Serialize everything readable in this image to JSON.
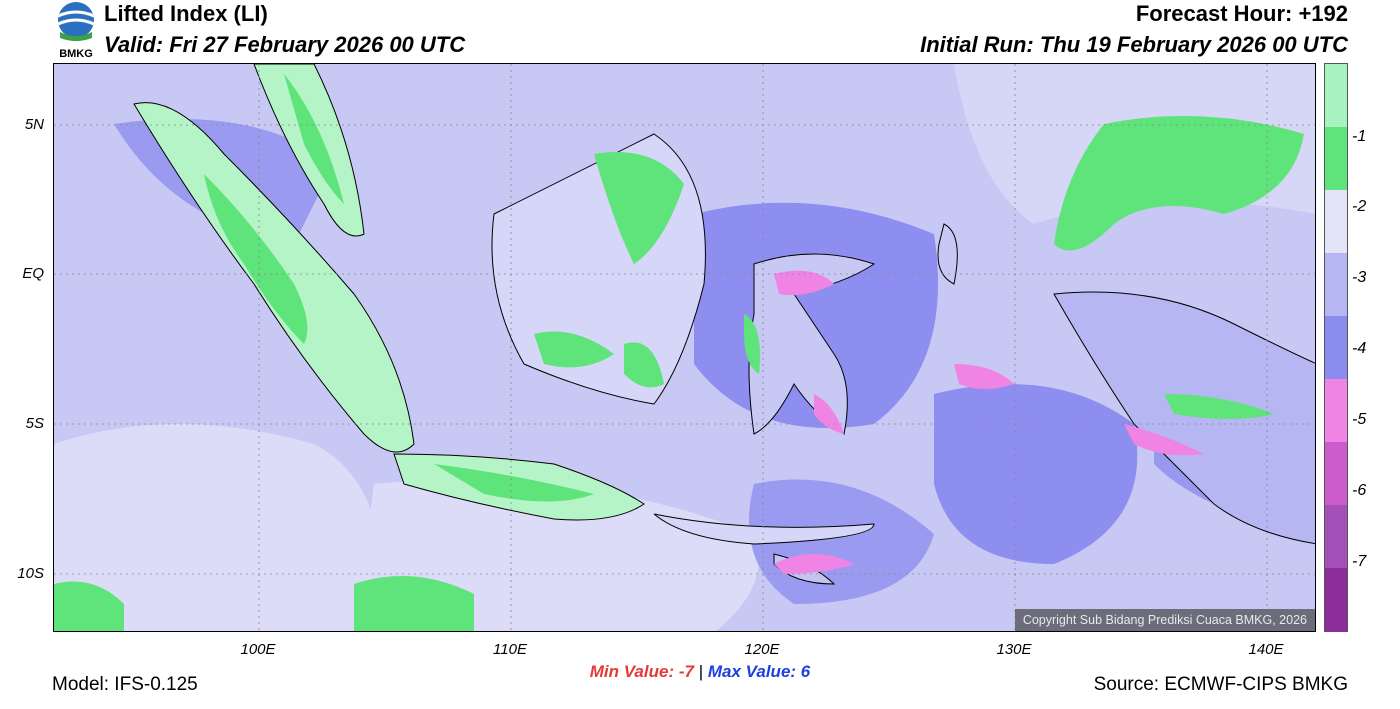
{
  "header": {
    "title": "Lifted Index (LI)",
    "valid": "Valid: Fri 27 February 2026 00 UTC",
    "forecast_hour": "Forecast Hour: +192",
    "initial_run": "Initial Run: Thu 19 February 2026 00 UTC"
  },
  "logo": {
    "text": "BMKG"
  },
  "axes": {
    "lat_labels": [
      "5N",
      "EQ",
      "5S",
      "10S"
    ],
    "lon_labels": [
      "100E",
      "110E",
      "120E",
      "130E",
      "140E"
    ]
  },
  "colorbar": {
    "labels": [
      "-1",
      "-2",
      "-3",
      "-4",
      "-5",
      "-6",
      "-7"
    ],
    "colors": [
      "#a8f2c0",
      "#5ee47a",
      "#e4e4f8",
      "#b6b6f2",
      "#8c8cee",
      "#ef84e4",
      "#cc5ccc",
      "#a450b8",
      "#8a2c9a"
    ]
  },
  "stats": {
    "min_label": "Min Value:",
    "min_value": "-7",
    "separator": "|",
    "max_label": "Max Value:",
    "max_value": "6"
  },
  "footer": {
    "model": "Model: IFS-0.125",
    "source": "Source: ECMWF-CIPS BMKG",
    "copyright": "Copyright Sub Bidang Prediksi Cuaca BMKG, 2026"
  }
}
